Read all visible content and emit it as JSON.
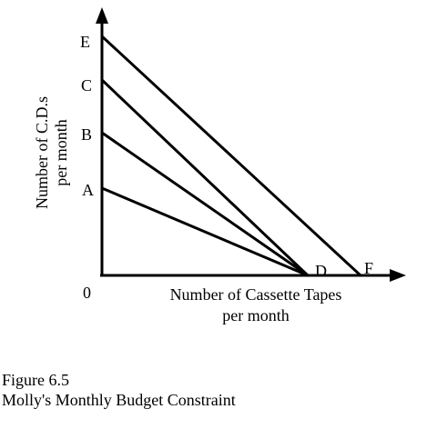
{
  "point_labels": {
    "E": "E",
    "C": "C",
    "B": "B",
    "A": "A",
    "D": "D",
    "F": "F"
  },
  "origin_label": "0",
  "y_axis_label": {
    "line1": "Number of C.D.s",
    "line2": "per month"
  },
  "x_axis_label": {
    "line1": "Number of Cassette Tapes",
    "line2": "per month"
  },
  "caption": {
    "figure_number": "Figure 6.5",
    "title": "Molly's Monthly Budget Constraint"
  },
  "constraint_lines": [
    {
      "from": "E",
      "to": "F"
    },
    {
      "from": "C",
      "to": "D"
    },
    {
      "from": "B",
      "to": "D"
    },
    {
      "from": "A",
      "to": "D"
    }
  ],
  "colors": {
    "ink": "#000000",
    "background": "#ffffff"
  }
}
